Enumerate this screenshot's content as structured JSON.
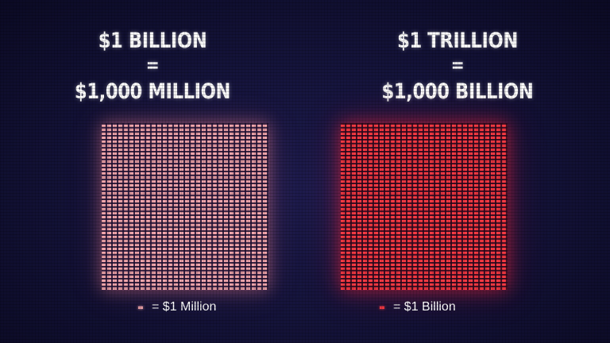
{
  "left": {
    "line1": "$1 BILLION",
    "line2": "=",
    "line3": "$1,000 MILLION",
    "legend": "= $1 Million",
    "color": "#f4a7ad"
  },
  "right": {
    "line1": "$1 TRILLION",
    "line2": "=",
    "line3": "$1,000 BILLION",
    "legend": "= $1 Billion",
    "color": "#ff3b44"
  }
}
